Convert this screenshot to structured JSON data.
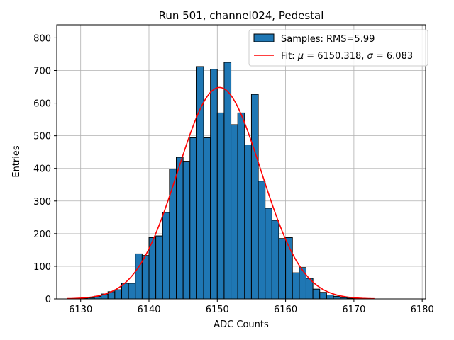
{
  "chart_data": {
    "type": "bar",
    "title": "Run 501, channel024, Pedestal",
    "xlabel": "ADC Counts",
    "ylabel": "Entries",
    "xlim": [
      6126.5,
      6180.5
    ],
    "ylim": [
      0,
      840
    ],
    "xticks": [
      6130,
      6140,
      6150,
      6160,
      6170,
      6180
    ],
    "yticks": [
      0,
      100,
      200,
      300,
      400,
      500,
      600,
      700,
      800
    ],
    "grid": true,
    "legend_position": "top-right",
    "bar_color": "#1f77b4",
    "fit_color": "#ff0000",
    "histogram": {
      "name": "Samples: RMS=5.99",
      "bin_width": 1,
      "bin_left_edges": [
        6130,
        6131,
        6132,
        6133,
        6134,
        6135,
        6136,
        6137,
        6138,
        6139,
        6140,
        6141,
        6142,
        6143,
        6144,
        6145,
        6146,
        6147,
        6148,
        6149,
        6150,
        6151,
        6152,
        6153,
        6154,
        6155,
        6156,
        6157,
        6158,
        6159,
        6160,
        6161,
        6162,
        6163,
        6164,
        6165,
        6166,
        6167,
        6168,
        6169,
        6170
      ],
      "counts": [
        2,
        3,
        8,
        15,
        22,
        28,
        48,
        48,
        138,
        133,
        188,
        193,
        265,
        398,
        434,
        422,
        494,
        712,
        494,
        704,
        570,
        725,
        534,
        570,
        472,
        627,
        361,
        278,
        241,
        185,
        188,
        80,
        96,
        63,
        30,
        20,
        12,
        8,
        4,
        2,
        1
      ]
    },
    "fit": {
      "name": "Fit: μ = 6150.318, σ = 6.083",
      "name_parts": {
        "prefix": "Fit: ",
        "mu_symbol": "μ",
        "mu_value": " = 6150.318, ",
        "sigma_symbol": "σ",
        "sigma_value": " = 6.083"
      },
      "mu": 6150.318,
      "sigma": 6.083,
      "amplitude": 648,
      "x_range": [
        6128,
        6173
      ]
    }
  }
}
